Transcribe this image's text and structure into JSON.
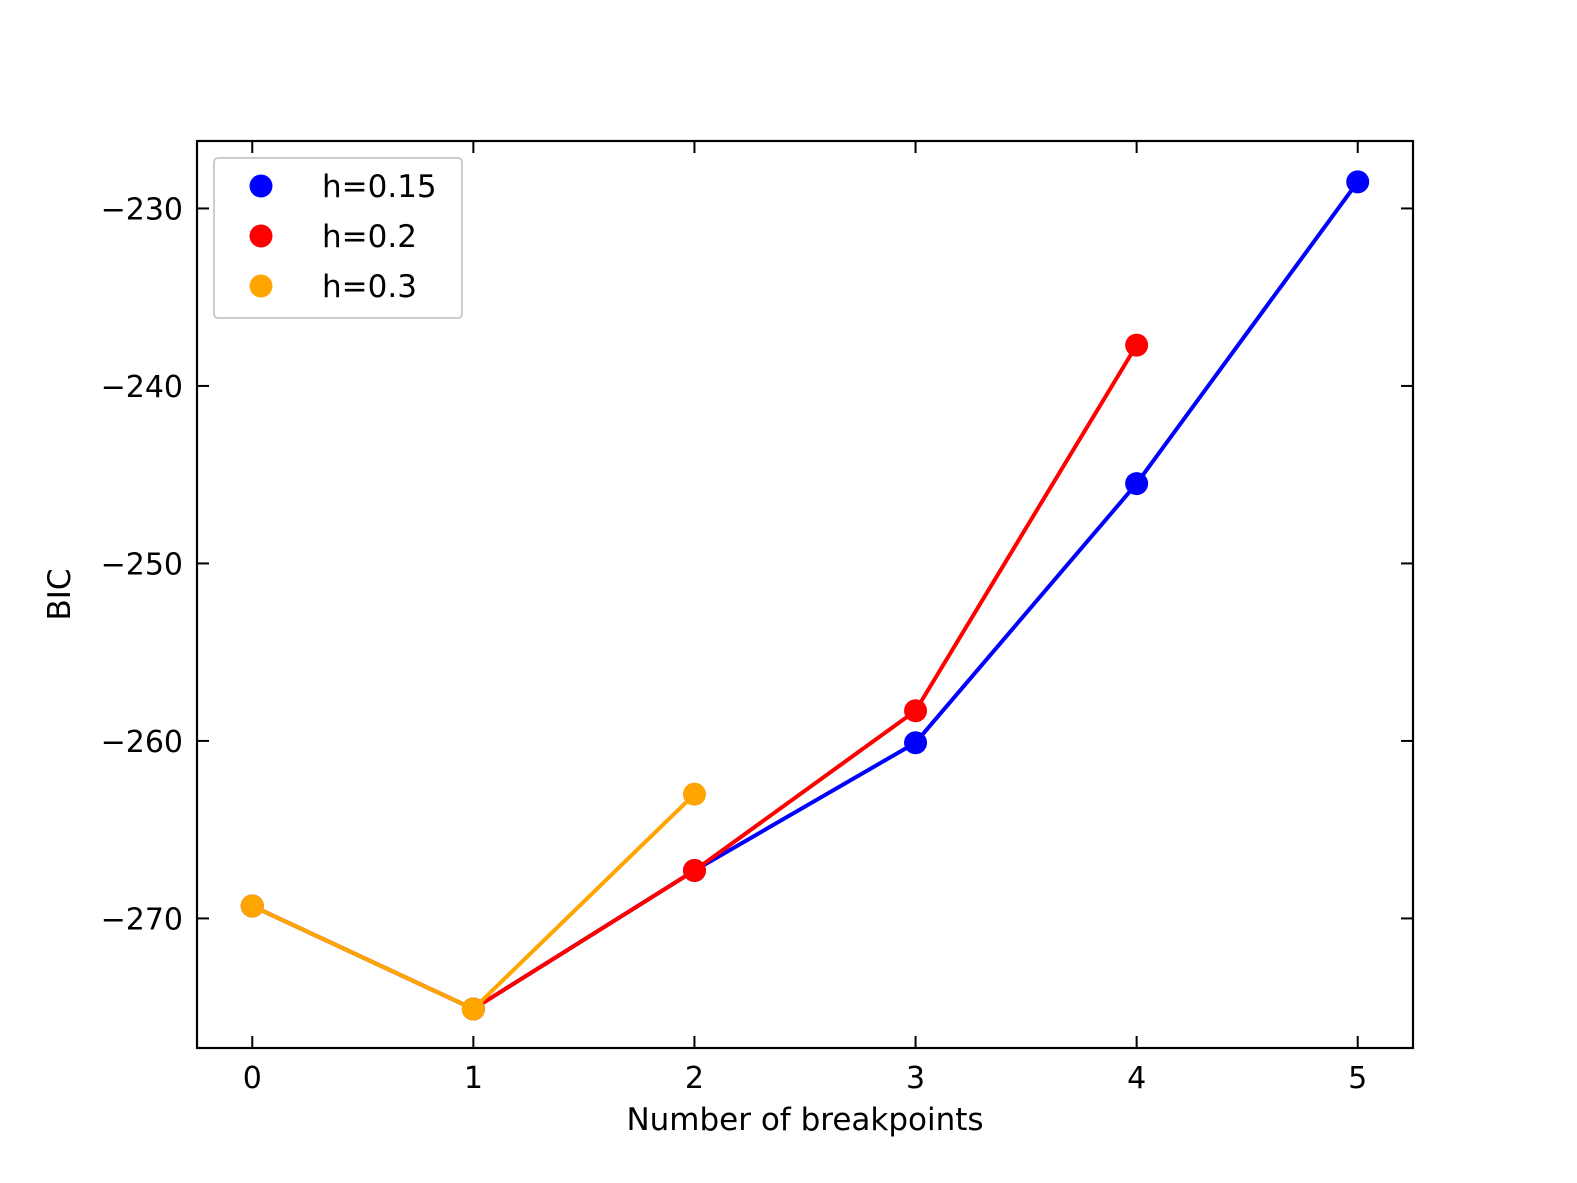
{
  "chart_data": {
    "type": "line",
    "title": "",
    "xlabel": "Number of breakpoints",
    "ylabel": "BIC",
    "xlim": [
      -0.25,
      5.25
    ],
    "ylim": [
      -277.3,
      -226.2
    ],
    "xticks": [
      0,
      1,
      2,
      3,
      4,
      5
    ],
    "xtick_labels": [
      "0",
      "1",
      "2",
      "3",
      "4",
      "5"
    ],
    "yticks": [
      -270,
      -260,
      -250,
      -240,
      -230
    ],
    "ytick_labels": [
      "−270",
      "−260",
      "−250",
      "−240",
      "−230"
    ],
    "legend_position": "top-left",
    "grid": false,
    "series": [
      {
        "name": "h=0.15",
        "color": "#0000ff",
        "x": [
          0,
          1,
          2,
          3,
          4,
          5
        ],
        "values": [
          -269.3,
          -275.1,
          -267.3,
          -260.1,
          -245.5,
          -228.5
        ]
      },
      {
        "name": "h=0.2",
        "color": "#ff0000",
        "x": [
          0,
          1,
          2,
          3,
          4
        ],
        "values": [
          -269.3,
          -275.1,
          -267.3,
          -258.3,
          -237.7
        ]
      },
      {
        "name": "h=0.3",
        "color": "#ffa500",
        "x": [
          0,
          1,
          2
        ],
        "values": [
          -269.3,
          -275.1,
          -263.0
        ]
      }
    ]
  }
}
